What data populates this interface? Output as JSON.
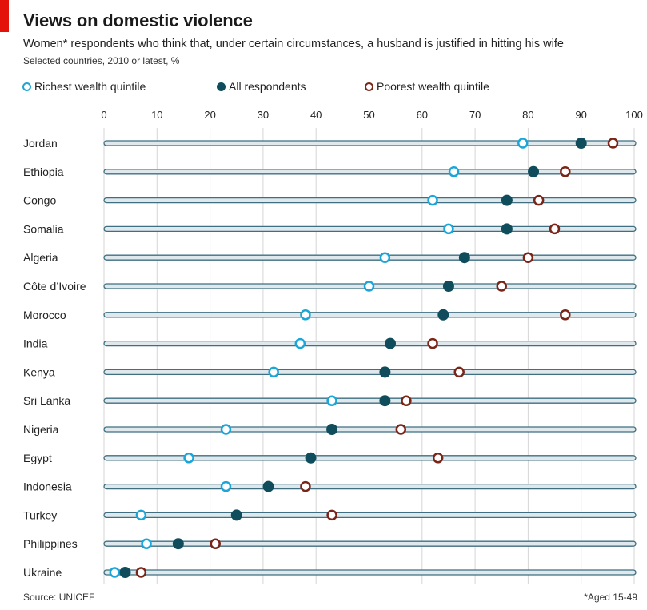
{
  "header": {
    "title": "Views on domestic violence",
    "subtitle": "Women* respondents who think that, under certain circumstances, a husband is justified in hitting his wife",
    "subsubtitle": "Selected countries, 2010 or latest, %"
  },
  "legend": {
    "richest": "Richest wealth quintile",
    "all": "All respondents",
    "poorest": "Poorest wealth quintile"
  },
  "footer": {
    "source": "Source: UNICEF",
    "note": "*Aged 15-49"
  },
  "colors": {
    "richest": "#1aa6d8",
    "all": "#0f4c5c",
    "poorest": "#7b2418",
    "bar_fill": "#dfe9ed",
    "bar_edge": "#3f6f80",
    "brand_red": "#e3120b"
  },
  "chart_data": {
    "type": "scatter",
    "title": "Views on domestic violence",
    "subtitle": "Women* respondents who think that, under certain circumstances, a husband is justified in hitting his wife",
    "xlim": [
      0,
      100
    ],
    "x_ticks": [
      0,
      10,
      20,
      30,
      40,
      50,
      60,
      70,
      80,
      90,
      100
    ],
    "grid": true,
    "legend_position": "top-left",
    "categories": [
      "Jordan",
      "Ethiopia",
      "Congo",
      "Somalia",
      "Algeria",
      "Côte d’Ivoire",
      "Morocco",
      "India",
      "Kenya",
      "Sri Lanka",
      "Nigeria",
      "Egypt",
      "Indonesia",
      "Turkey",
      "Philippines",
      "Ukraine"
    ],
    "series": [
      {
        "name": "Richest wealth quintile",
        "values": [
          79,
          66,
          62,
          65,
          53,
          50,
          38,
          37,
          32,
          43,
          23,
          16,
          23,
          7,
          8,
          2
        ]
      },
      {
        "name": "All respondents",
        "values": [
          90,
          81,
          76,
          76,
          68,
          65,
          64,
          54,
          53,
          53,
          43,
          39,
          31,
          25,
          14,
          4
        ]
      },
      {
        "name": "Poorest wealth quintile",
        "values": [
          96,
          87,
          82,
          85,
          80,
          75,
          87,
          62,
          67,
          57,
          56,
          63,
          38,
          43,
          21,
          7
        ]
      }
    ]
  }
}
